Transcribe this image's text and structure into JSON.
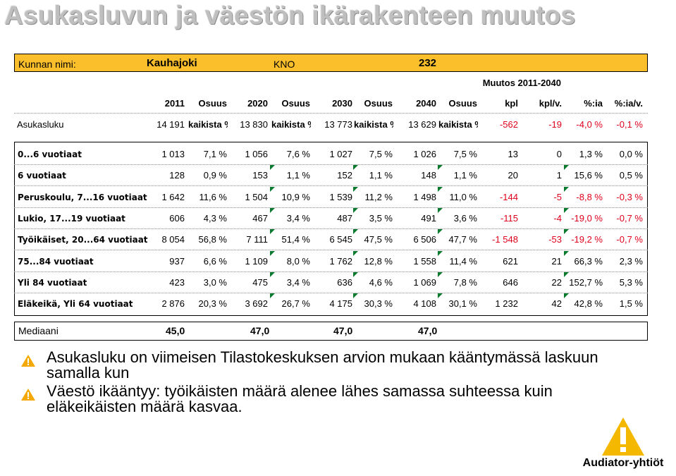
{
  "title": "Asukasluvun ja väestön ikärakenteen muutos",
  "header": {
    "kunta_label": "Kunnan nimi:",
    "kunta_value": "Kauhajoki",
    "kno_label": "KNO",
    "kno_value": "232",
    "muutos_label": "Muutos 2011-2040"
  },
  "columns": [
    "2011",
    "Osuus",
    "2020",
    "Osuus",
    "2030",
    "Osuus",
    "2040",
    "Osuus",
    "kpl",
    "kpl/v.",
    "%:ia",
    "%:ia/v."
  ],
  "asukasluku": {
    "label": "Asukasluku",
    "values": [
      "14 191",
      "kaikista %",
      "13 830",
      "kaikista %",
      "13 773",
      "kaikista %",
      "13 629",
      "kaikista %",
      "-562",
      "-19",
      "-4,0 %",
      "-0,1 %"
    ]
  },
  "rows": [
    {
      "label": "0...6 vuotiaat",
      "values": [
        "1 013",
        "7,1 %",
        "1 056",
        "7,6 %",
        "1 027",
        "7,5 %",
        "1 026",
        "7,5 %",
        "13",
        "0",
        "1,3 %",
        "0,0 %"
      ]
    },
    {
      "label": "6 vuotiaat",
      "values": [
        "128",
        "0,9 %",
        "153",
        "1,1 %",
        "152",
        "1,1 %",
        "148",
        "1,1 %",
        "20",
        "1",
        "15,6 %",
        "0,5 %"
      ]
    },
    {
      "label": "Peruskoulu, 7...16 vuotiaat",
      "values": [
        "1 642",
        "11,6 %",
        "1 504",
        "10,9 %",
        "1 539",
        "11,2 %",
        "1 498",
        "11,0 %",
        "-144",
        "-5",
        "-8,8 %",
        "-0,3 %"
      ]
    },
    {
      "label": "Lukio, 17...19 vuotiaat",
      "values": [
        "606",
        "4,3 %",
        "467",
        "3,4 %",
        "487",
        "3,5 %",
        "491",
        "3,6 %",
        "-115",
        "-4",
        "-19,0 %",
        "-0,7 %"
      ]
    },
    {
      "label": "Työikäiset, 20...64 vuotiaat",
      "values": [
        "8 054",
        "56,8 %",
        "7 111",
        "51,4 %",
        "6 545",
        "47,5 %",
        "6 506",
        "47,7 %",
        "-1 548",
        "-53",
        "-19,2 %",
        "-0,7 %"
      ]
    },
    {
      "label": "75...84 vuotiaat",
      "values": [
        "937",
        "6,6 %",
        "1 109",
        "8,0 %",
        "1 762",
        "12,8 %",
        "1 558",
        "11,4 %",
        "621",
        "21",
        "66,3 %",
        "2,3 %"
      ]
    },
    {
      "label": "Yli 84 vuotiaat",
      "values": [
        "423",
        "3,0 %",
        "475",
        "3,4 %",
        "636",
        "4,6 %",
        "1 069",
        "7,8 %",
        "646",
        "22",
        "152,7 %",
        "5,3 %"
      ]
    },
    {
      "label": "Eläkeikä, Yli 64 vuotiaat",
      "values": [
        "2 876",
        "20,3 %",
        "3 692",
        "26,7 %",
        "4 175",
        "30,3 %",
        "4 108",
        "30,1 %",
        "1 232",
        "42",
        "42,8 %",
        "1,5 %"
      ]
    }
  ],
  "mediaani": {
    "label": "Mediaani",
    "values": [
      "45,0",
      "47,0",
      "47,0",
      "47,0"
    ]
  },
  "bullets": [
    "Asukasluku on viimeisen Tilastokeskuksen arvion mukaan kääntymässä laskuun samalla kun",
    "Väestö ikääntyy: työikäisten määrä alenee lähes samassa suhteessa kuin eläkeikäisten määrä kasvaa."
  ],
  "logo_text": "Audiator-yhtiöt",
  "colors": {
    "header_bar": "#fbbf2c",
    "negative": "#e0001b",
    "comment_marker": "#0a7a2f",
    "logo_yellow": "#f5b800"
  }
}
